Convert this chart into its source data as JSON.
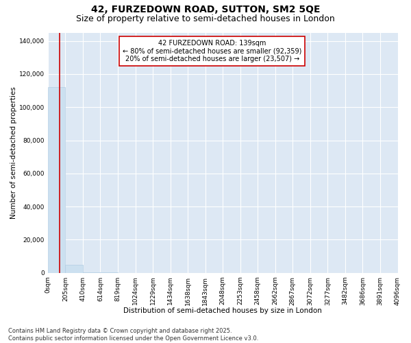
{
  "title": "42, FURZEDOWN ROAD, SUTTON, SM2 5QE",
  "subtitle": "Size of property relative to semi-detached houses in London",
  "xlabel": "Distribution of semi-detached houses by size in London",
  "ylabel": "Number of semi-detached properties",
  "annotation_title": "42 FURZEDOWN ROAD: 139sqm",
  "annotation_line1": "← 80% of semi-detached houses are smaller (92,359)",
  "annotation_line2": "20% of semi-detached houses are larger (23,507) →",
  "property_size": 139,
  "bar_counts": [
    112000,
    5000,
    500,
    150,
    60,
    30,
    18,
    10,
    7,
    5,
    4,
    3,
    2,
    2,
    1,
    1,
    1,
    1,
    1,
    0
  ],
  "bin_edges": [
    0,
    205,
    410,
    614,
    819,
    1024,
    1229,
    1434,
    1638,
    1843,
    2048,
    2253,
    2458,
    2662,
    2867,
    3072,
    3277,
    3482,
    3686,
    3891,
    4096
  ],
  "bin_labels": [
    "0sqm",
    "205sqm",
    "410sqm",
    "614sqm",
    "819sqm",
    "1024sqm",
    "1229sqm",
    "1434sqm",
    "1638sqm",
    "1843sqm",
    "2048sqm",
    "2253sqm",
    "2458sqm",
    "2662sqm",
    "2867sqm",
    "3072sqm",
    "3277sqm",
    "3482sqm",
    "3686sqm",
    "3891sqm",
    "4096sqm"
  ],
  "bar_color": "#cce0f0",
  "bar_edge_color": "#aac8e0",
  "red_line_color": "#cc0000",
  "annotation_box_facecolor": "#ffffff",
  "annotation_box_edgecolor": "#cc0000",
  "plot_bg_color": "#dde8f4",
  "grid_color": "#ffffff",
  "ylim": [
    0,
    145000
  ],
  "ytick_values": [
    0,
    20000,
    40000,
    60000,
    80000,
    100000,
    120000,
    140000
  ],
  "footer_line1": "Contains HM Land Registry data © Crown copyright and database right 2025.",
  "footer_line2": "Contains public sector information licensed under the Open Government Licence v3.0.",
  "title_fontsize": 10,
  "subtitle_fontsize": 9,
  "axis_label_fontsize": 7.5,
  "tick_fontsize": 6.5,
  "annotation_fontsize": 7,
  "footer_fontsize": 6
}
